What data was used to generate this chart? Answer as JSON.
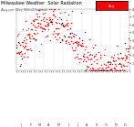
{
  "title": "Milwaukee Weather  Solar Radiation",
  "subtitle": "Avg per Day W/m2/minute",
  "background_color": "#ffffff",
  "plot_bg": "#ffffff",
  "ylim": [
    0,
    8
  ],
  "ytick_values": [
    1,
    2,
    3,
    4,
    5,
    6,
    7,
    8
  ],
  "grid_color": "#cccccc",
  "legend_label": "Avg",
  "legend_color": "#ff0000",
  "dot_color_red": "#ff0000",
  "dot_color_black": "#000000",
  "num_points": 365,
  "title_fontsize": 3.5,
  "subtitle_fontsize": 2.8,
  "tick_fontsize": 2.5,
  "markersize": 0.9
}
